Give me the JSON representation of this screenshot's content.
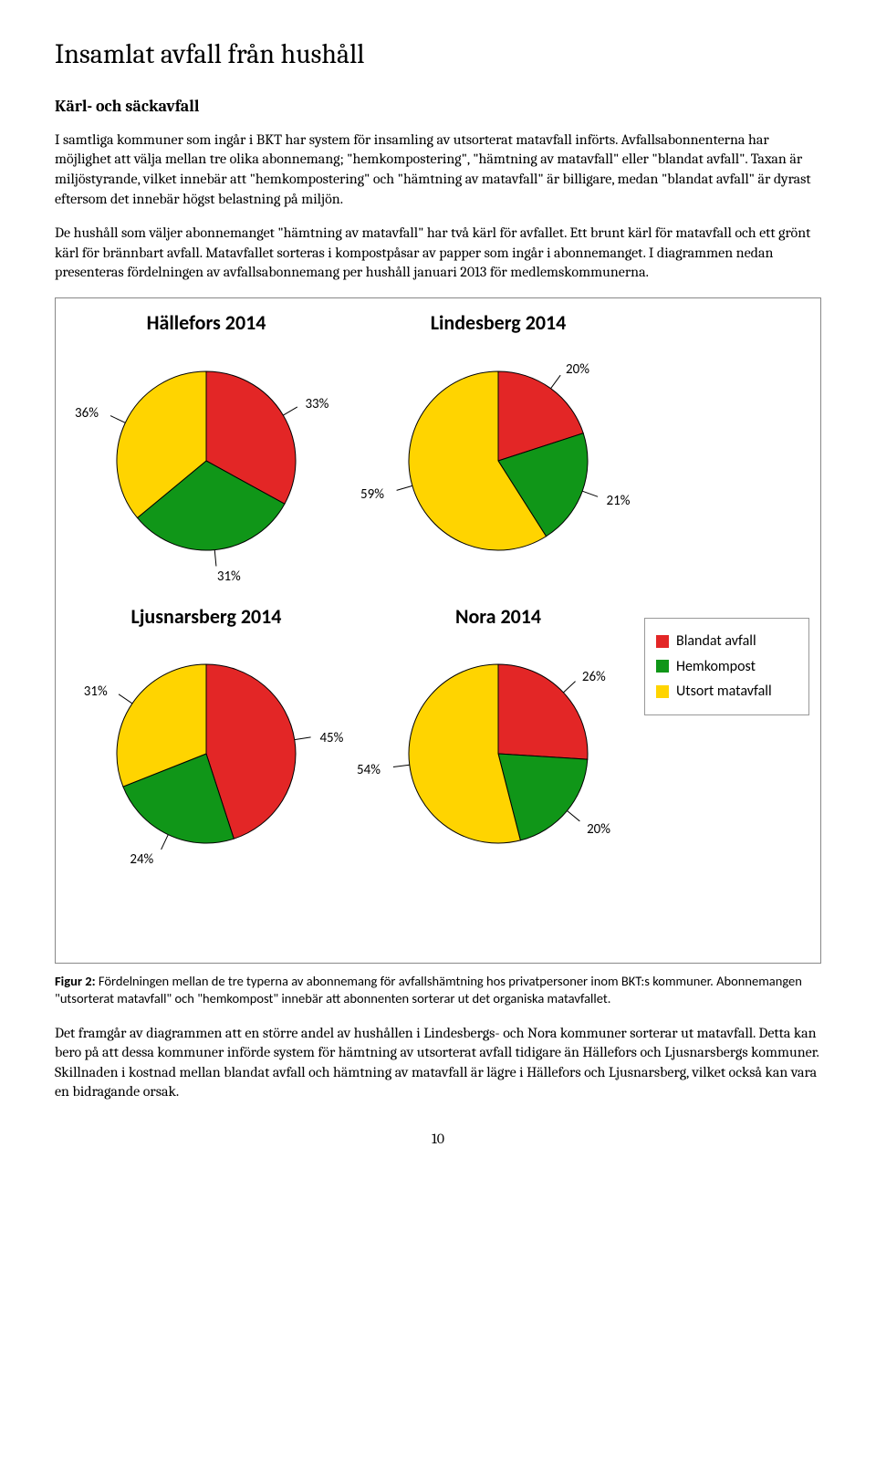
{
  "heading": "Insamlat avfall från hushåll",
  "subheading": "Kärl- och säckavfall",
  "para1": "I samtliga kommuner som ingår i BKT har system för insamling av utsorterat matavfall införts. Avfallsabonnenterna har möjlighet att välja mellan tre olika abonnemang; \"hemkompostering\", \"hämtning av matavfall\" eller \"blandat avfall\". Taxan är miljöstyrande, vilket innebär att \"hemkompostering\" och \"hämtning av matavfall\" är billigare, medan \"blandat avfall\" är dyrast eftersom det innebär högst belastning på miljön.",
  "para2": "De hushåll som väljer abonnemanget \"hämtning av matavfall\" har två kärl för avfallet. Ett brunt kärl för matavfall och ett grönt kärl för brännbart avfall. Matavfallet sorteras i kompostpåsar av papper som ingår i abonnemanget. I diagrammen nedan presenteras fördelningen av avfallsabonnemang per hushåll januari 2013 för medlemskommunerna.",
  "colors": {
    "blandat": "#e32626",
    "hemkompost": "#109618",
    "utsort": "#ffd400",
    "slice_border": "#000000"
  },
  "legend": {
    "items": [
      {
        "label": "Blandat avfall",
        "color_key": "blandat"
      },
      {
        "label": "Hemkompost",
        "color_key": "hemkompost"
      },
      {
        "label": "Utsort matavfall",
        "color_key": "utsort"
      }
    ]
  },
  "charts": [
    {
      "title": "Hällefors 2014",
      "slices": [
        {
          "value": 33,
          "label": "33%",
          "color_key": "blandat"
        },
        {
          "value": 31,
          "label": "31%",
          "color_key": "hemkompost"
        },
        {
          "value": 36,
          "label": "36%",
          "color_key": "utsort"
        }
      ]
    },
    {
      "title": "Lindesberg 2014",
      "slices": [
        {
          "value": 20,
          "label": "20%",
          "color_key": "blandat"
        },
        {
          "value": 21,
          "label": "21%",
          "color_key": "hemkompost"
        },
        {
          "value": 59,
          "label": "59%",
          "color_key": "utsort"
        }
      ]
    },
    {
      "title": "Ljusnarsberg 2014",
      "slices": [
        {
          "value": 45,
          "label": "45%",
          "color_key": "blandat"
        },
        {
          "value": 24,
          "label": "24%",
          "color_key": "hemkompost"
        },
        {
          "value": 31,
          "label": "31%",
          "color_key": "utsort"
        }
      ]
    },
    {
      "title": "Nora 2014",
      "slices": [
        {
          "value": 26,
          "label": "26%",
          "color_key": "blandat"
        },
        {
          "value": 20,
          "label": "20%",
          "color_key": "hemkompost"
        },
        {
          "value": 54,
          "label": "54%",
          "color_key": "utsort"
        }
      ]
    }
  ],
  "caption_bold": "Figur 2:",
  "caption_text": " Fördelningen mellan de tre typerna av abonnemang för avfallshämtning hos privatpersoner inom BKT:s kommuner. Abonnemangen \"utsorterat matavfall\" och \"hemkompost\" innebär att abonnenten sorterar ut det organiska matavfallet.",
  "para3": "Det framgår av diagrammen att en större andel av hushållen i Lindesbergs- och Nora kommuner sorterar ut matavfall. Detta kan bero på att dessa kommuner införde system för hämtning av utsorterat avfall tidigare än Hällefors och Ljusnarsbergs kommuner. Skillnaden i kostnad mellan blandat avfall och hämtning av matavfall är lägre i Hällefors och Ljusnarsberg, vilket också kan vara en bidragande orsak.",
  "page_number": "10"
}
